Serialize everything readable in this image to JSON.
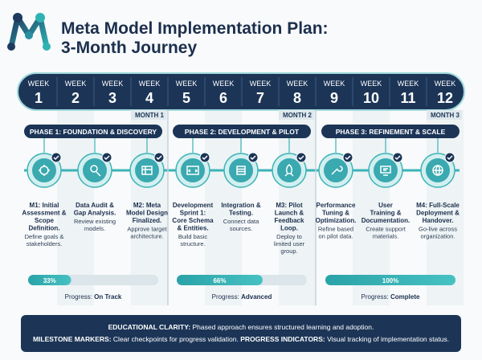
{
  "header": {
    "title": [
      "Meta Model Implementation Plan:",
      "3-Month Journey"
    ]
  },
  "weeks": [
    {
      "label": "WEEK",
      "number": 1
    },
    {
      "label": "WEEK",
      "number": 2
    },
    {
      "label": "WEEK",
      "number": 3
    },
    {
      "label": "WEEK",
      "number": 4
    },
    {
      "label": "WEEK",
      "number": 5
    },
    {
      "label": "WEEK",
      "number": 6
    },
    {
      "label": "WEEK",
      "number": 7
    },
    {
      "label": "WEEK",
      "number": 8
    },
    {
      "label": "WEEK",
      "number": 9
    },
    {
      "label": "WEEK",
      "number": 10
    },
    {
      "label": "WEEK",
      "number": 11
    },
    {
      "label": "WEEK",
      "number": 12
    }
  ],
  "months": [
    "MONTH 1",
    "MONTH 2",
    "MONTH 3"
  ],
  "phases": [
    {
      "title": "PHASE 1: FOUNDATION & DISCOVERY",
      "progress": {
        "value": 33,
        "label": "33%"
      },
      "status_label": "Progress:",
      "status": "On Track",
      "milestones": [
        {
          "title": [
            "M1: Initial",
            "Assessment &",
            "Scope",
            "Definition."
          ],
          "description": [
            "Define goals &",
            "stakeholders."
          ]
        },
        {
          "title": [
            "Data Audit &",
            "Gap Analysis."
          ],
          "description": [
            "Review existing",
            "models."
          ]
        },
        {
          "title": [
            "M2: Meta",
            "Model Design",
            "Finalized."
          ],
          "description": [
            "Approve target",
            "architecture."
          ]
        }
      ]
    },
    {
      "title": "PHASE 2: DEVELOPMENT & PILOT",
      "progress": {
        "value": 66,
        "label": "66%"
      },
      "status_label": "Progress:",
      "status": "Advanced",
      "milestones": [
        {
          "title": [
            "Development",
            "Sprint 1:",
            "Core Schema",
            "& Entities."
          ],
          "description": [
            "Build basic",
            "structure."
          ]
        },
        {
          "title": [
            "Integration &",
            "Testing."
          ],
          "description": [
            "Connect data",
            "sources."
          ]
        },
        {
          "title": [
            "M3: Pilot",
            "Launch &",
            "Feedback",
            "Loop."
          ],
          "description": [
            "Deploy to",
            "limited user",
            "group."
          ]
        }
      ]
    },
    {
      "title": "PHASE 3: REFINEMENT & SCALE",
      "progress": {
        "value": 100,
        "label": "100%"
      },
      "status_label": "Progress:",
      "status": "Complete",
      "milestones": [
        {
          "title": [
            "Performance",
            "Tuning &",
            "Optimization."
          ],
          "description": [
            "Refine based",
            "on pilot data."
          ]
        },
        {
          "title": [
            "User",
            "Training &",
            "Documentation."
          ],
          "description": [
            "Create support",
            "materials."
          ]
        },
        {
          "title": [
            "M4: Full-Scale",
            "Deployment &",
            "Handover."
          ],
          "description": [
            "Go-live across",
            "organization."
          ]
        }
      ]
    }
  ],
  "footer": {
    "lines": [
      [
        {
          "key": "EDUCATIONAL CLARITY:",
          "text": "Phased approach ensures structured learning and adoption."
        }
      ],
      [
        {
          "key": "MILESTONE MARKERS:",
          "text": "Clear checkpoints for progress validation."
        },
        {
          "key": "PROGRESS INDICATORS:",
          "text": "Visual tracking of implementation status."
        }
      ]
    ]
  }
}
